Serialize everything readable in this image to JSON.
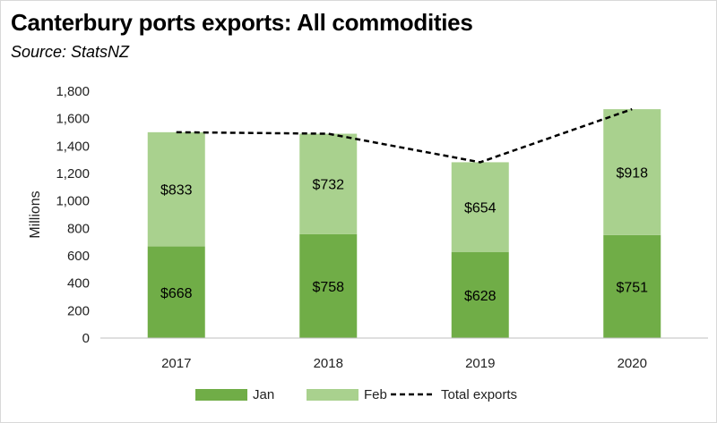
{
  "title": "Canterbury ports exports: All commodities",
  "subtitle": "Source: StatsNZ",
  "chart_data": {
    "type": "bar",
    "stacked": true,
    "categories": [
      "2017",
      "2018",
      "2019",
      "2020"
    ],
    "series": [
      {
        "name": "Jan",
        "values": [
          668,
          758,
          628,
          751
        ],
        "labels": [
          "$668",
          "$758",
          "$628",
          "$751"
        ],
        "color": "#70ad47"
      },
      {
        "name": "Feb",
        "values": [
          833,
          732,
          654,
          918
        ],
        "labels": [
          "$833",
          "$732",
          "$654",
          "$918"
        ],
        "color": "#a9d18e"
      }
    ],
    "line_series": {
      "name": "Total exports",
      "values": [
        1501,
        1490,
        1282,
        1669
      ],
      "color": "#000000",
      "style": "dashed"
    },
    "ylabel": "Millions",
    "xlabel": "",
    "ylim": [
      0,
      1800
    ],
    "yticks": [
      0,
      200,
      400,
      600,
      800,
      1000,
      1200,
      1400,
      1600,
      1800
    ],
    "ytick_labels": [
      "0",
      "200",
      "400",
      "600",
      "800",
      "1,000",
      "1,200",
      "1,400",
      "1,600",
      "1,800"
    ],
    "grid": false,
    "legend_position": "bottom"
  }
}
